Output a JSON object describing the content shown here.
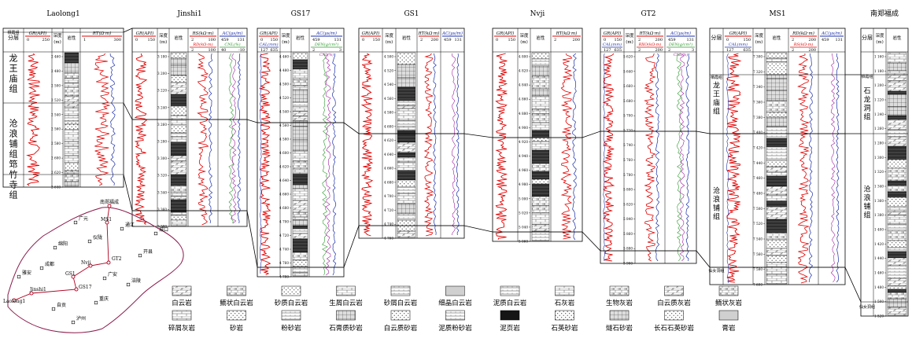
{
  "wells": [
    {
      "name": "Laolong1",
      "x": 4,
      "w": 153,
      "top": 36,
      "bot": 238,
      "cols": [
        {
          "k": "fm",
          "w": 26,
          "label": "分层"
        },
        {
          "k": "gr",
          "w": 36,
          "curve": "GR(API)",
          "range": [
            "0",
            "250"
          ]
        },
        {
          "k": "d",
          "w": 14,
          "label": "深度\n(m)"
        },
        {
          "k": "l",
          "w": 22,
          "label": "岩性"
        },
        {
          "k": "rt",
          "w": 55,
          "curve": "RT(Ω·m)",
          "range": [
            "1",
            "300"
          ]
        }
      ],
      "ticks": [
        "2 460",
        "2 480",
        "2 500",
        "2 520",
        "2 540",
        "2 560",
        "2 580",
        "2 600",
        "2 620",
        "2 640"
      ],
      "formations": [
        {
          "name": "栖霞组",
          "y": 42,
          "short": true
        },
        {
          "name": "龙王庙组",
          "y": 97
        },
        {
          "name": "沧浪铺组",
          "y": 180
        },
        {
          "name": "筇竹寺组",
          "y": 232
        }
      ],
      "boundaries": [
        41,
        131,
        222
      ]
    },
    {
      "name": "Jinshi1",
      "x": 168,
      "w": 146,
      "top": 36,
      "bot": 288,
      "cols": [
        {
          "k": "gr",
          "w": 32,
          "curve": "GR(API)",
          "range": [
            "0",
            "150"
          ]
        },
        {
          "k": "d",
          "w": 15,
          "label": "深度\n(m)"
        },
        {
          "k": "l",
          "w": 24,
          "label": "岩性"
        },
        {
          "k": "rt",
          "w": 38,
          "curve": "RS(kΩ·m)",
          "range": [
            "2",
            "100"
          ],
          "curve2": "RD(kΩ·m)",
          "range2": [
            "2",
            "100"
          ]
        },
        {
          "k": "ac",
          "w": 37,
          "curve": "AC(μs/m)",
          "range": [
            "459",
            "131"
          ],
          "curve2": "CNL(%)",
          "range2": [
            "40",
            "-10"
          ]
        }
      ],
      "ticks": [
        "3 180",
        "3 200",
        "3 220",
        "3 240",
        "3 260",
        "3 280",
        "3 300",
        "3 320",
        "3 340",
        "3 360",
        "3 380"
      ],
      "boundaries": [
        152,
        268
      ]
    },
    {
      "name": "GS17",
      "x": 327,
      "w": 110,
      "top": 36,
      "bot": 352,
      "cols": [
        {
          "k": "gr",
          "w": 29,
          "curve": "GR(API)",
          "range": [
            "0",
            "150"
          ],
          "curve2": "CAL(mm)",
          "range2": [
            "127",
            "635"
          ]
        },
        {
          "k": "d",
          "w": 14,
          "label": "深度\n(m)"
        },
        {
          "k": "l",
          "w": 23,
          "label": "岩性"
        },
        {
          "k": "ac",
          "w": 44,
          "curve": "AC(μs/m)",
          "range": [
            "459",
            "131"
          ],
          "curve2": "DEN(g/cm³)",
          "range2": [
            "2",
            "3"
          ],
          "curve3": "CNL(%)",
          "range3": [
            "40",
            "-10"
          ]
        }
      ],
      "ticks": [
        "4 460",
        "4 480",
        "4 500",
        "4 520",
        "4 540",
        "4 560",
        "4 580",
        "4 600",
        "4 620",
        "4 640",
        "4 660",
        "4 680",
        "4 700",
        "4 720",
        "4 740",
        "4 760",
        "4 780"
      ],
      "boundaries": [
        156,
        340
      ]
    },
    {
      "name": "GS1",
      "x": 456,
      "w": 134,
      "top": 36,
      "bot": 303,
      "cols": [
        {
          "k": "gr",
          "w": 30,
          "curve": "GR(API)",
          "range": [
            "0",
            "150"
          ]
        },
        {
          "k": "d",
          "w": 17,
          "label": "深度\n(m)"
        },
        {
          "k": "l",
          "w": 27,
          "label": "岩性"
        },
        {
          "k": "rt",
          "w": 30,
          "curve": "RT(kΩ·m)",
          "range": [
            "2",
            "200"
          ]
        },
        {
          "k": "ac",
          "w": 30,
          "curve": "AC(μs/m)",
          "range": [
            "459",
            "131"
          ]
        }
      ],
      "ticks": [
        "4 500",
        "4 520",
        "4 540",
        "4 560",
        "4 580",
        "4 600",
        "4 620",
        "4 640",
        "4 660",
        "4 680",
        "4 700",
        "4 720",
        "4 740",
        "4 760"
      ],
      "boundaries": [
        170,
        287
      ]
    },
    {
      "name": "Nvji",
      "x": 626,
      "w": 114,
      "top": 36,
      "bot": 307,
      "cols": [
        {
          "k": "gr",
          "w": 32,
          "curve": "GR(API)",
          "range": [
            "0",
            "150"
          ]
        },
        {
          "k": "d",
          "w": 16,
          "label": "深度\n(m)"
        },
        {
          "k": "l",
          "w": 26,
          "label": "岩性"
        },
        {
          "k": "rt",
          "w": 40,
          "curve": "RT(kΩ·m)",
          "range": [
            "2",
            "200"
          ]
        }
      ],
      "ticks": [
        "4 800",
        "4 820",
        "4 840",
        "4 860",
        "4 880",
        "4 900",
        "4 920",
        "4 940",
        "4 960",
        "4 980",
        "5 000",
        "5 020",
        "5 040",
        "5 060"
      ],
      "boundaries": [
        175,
        295
      ]
    },
    {
      "name": "GT2",
      "x": 763,
      "w": 122,
      "top": 36,
      "bot": 335,
      "cols": [
        {
          "k": "gr",
          "w": 30,
          "curve": "GR(API)",
          "range": [
            "0",
            "150"
          ],
          "curve2": "CAL(mm)",
          "range2": [
            "127",
            "635"
          ]
        },
        {
          "k": "d",
          "w": 14,
          "label": "深度\n(m)"
        },
        {
          "k": "rt",
          "w": 38,
          "curve": "RT(kΩ·m)",
          "range": [
            "2",
            "200"
          ],
          "curve2": "RXO(kΩ·m)",
          "range2": [
            "2",
            "200"
          ]
        },
        {
          "k": "ac",
          "w": 40,
          "curve": "AC(μs/m)",
          "range": [
            "459",
            "131"
          ],
          "curve2": "DEN(g/cm³)",
          "range2": [
            "2",
            "3"
          ],
          "curve3": "CNL(%)",
          "range3": [
            "40",
            "-10"
          ]
        }
      ],
      "ticks": [
        "5 620",
        "5 640",
        "5 660",
        "5 680",
        "5 700",
        "5 720",
        "5 740",
        "5 760",
        "5 780",
        "5 800",
        "5 820",
        "5 840",
        "5 860",
        "5 880",
        "5 900"
      ],
      "boundaries": [
        167,
        319
      ]
    },
    {
      "name": "MS1",
      "x": 902,
      "w": 172,
      "top": 36,
      "bot": 362,
      "cols": [
        {
          "k": "fm",
          "w": 17,
          "label": "分层"
        },
        {
          "k": "gr",
          "w": 38,
          "curve": "GR(API)",
          "range": [
            "0",
            "150"
          ],
          "curve2": "CAL(mm)",
          "range2": [
            "127",
            "635"
          ]
        },
        {
          "k": "d",
          "w": 15,
          "label": "深度\n(m)"
        },
        {
          "k": "l",
          "w": 30,
          "label": "岩性"
        },
        {
          "k": "rt",
          "w": 38,
          "curve": "RD(kΩ·m)",
          "range": [
            "2",
            "200"
          ],
          "curve2": "RS(kΩ·m)",
          "range2": [
            "2",
            "200"
          ]
        },
        {
          "k": "ac",
          "w": 34,
          "curve": "AC(μs/m)",
          "range": [
            "459",
            "131"
          ]
        }
      ],
      "ticks": [
        "7 300",
        "7 320",
        "7 340",
        "7 360",
        "7 380",
        "7 400",
        "7 420",
        "7 440",
        "7 460",
        "7 480",
        "7 500",
        "7 520",
        "7 540",
        "7 560",
        "7 580",
        "7 600"
      ],
      "formations": [
        {
          "name": "栖霞组",
          "y": 99,
          "short": true
        },
        {
          "name": "龙王庙组",
          "y": 128
        },
        {
          "name": "沧浪铺组",
          "y": 262
        },
        {
          "name": "仙女洞组",
          "y": 345,
          "short": true
        }
      ],
      "boundaries": [
        95,
        170,
        340
      ]
    },
    {
      "name": "南郑福成",
      "x": 1094,
      "w": 60,
      "top": 36,
      "bot": 402,
      "cols": [
        {
          "k": "fm",
          "w": 16,
          "label": "分层"
        },
        {
          "k": "d",
          "w": 16,
          "label": "深度\n(m)"
        },
        {
          "k": "l",
          "w": 28,
          "label": "岩性"
        }
      ],
      "ticks": [
        "1 160",
        "1 180",
        "1 200",
        "1 220",
        "1 240",
        "1 260",
        "1 280",
        "1 300",
        "1 320",
        "1 340",
        "1 360",
        "1 380",
        "1 400",
        "1 420",
        "1 440",
        "1 460",
        "1 480",
        "1 500",
        "1 520"
      ],
      "formations": [
        {
          "name": "栖霞组",
          "y": 98,
          "short": true
        },
        {
          "name": "石龙洞组",
          "y": 135
        },
        {
          "name": "沧浪铺组",
          "y": 260
        },
        {
          "name": "仙女洞组",
          "y": 391,
          "short": true
        }
      ],
      "boundaries": [
        95,
        170,
        384
      ]
    }
  ],
  "correlation_lines": [
    [
      [
        157,
        131
      ],
      [
        168,
        152
      ],
      [
        314,
        152
      ],
      [
        327,
        156
      ],
      [
        437,
        156
      ],
      [
        456,
        170
      ],
      [
        590,
        170
      ],
      [
        626,
        175
      ],
      [
        740,
        175
      ],
      [
        763,
        167
      ],
      [
        885,
        167
      ],
      [
        902,
        170
      ],
      [
        1074,
        170
      ],
      [
        1094,
        170
      ]
    ],
    [
      [
        157,
        222
      ],
      [
        168,
        268
      ],
      [
        314,
        268
      ],
      [
        327,
        340
      ],
      [
        437,
        340
      ],
      [
        456,
        287
      ],
      [
        590,
        287
      ],
      [
        626,
        295
      ],
      [
        740,
        295
      ],
      [
        763,
        319
      ],
      [
        885,
        319
      ],
      [
        902,
        340
      ],
      [
        1074,
        340
      ],
      [
        1094,
        384
      ]
    ],
    [
      [
        157,
        41
      ],
      [
        168,
        36
      ]
    ],
    [
      [
        1074,
        95
      ],
      [
        1094,
        95
      ]
    ]
  ],
  "map": {
    "cities": [
      {
        "name": "南郑福成",
        "x": 139,
        "y": 262,
        "kind": "well"
      },
      {
        "name": "广元",
        "x": 96,
        "y": 283,
        "kind": "city"
      },
      {
        "name": "MS1",
        "x": 136,
        "y": 283,
        "kind": "well"
      },
      {
        "name": "通江",
        "x": 155,
        "y": 291,
        "kind": "city"
      },
      {
        "name": "城口",
        "x": 198,
        "y": 297,
        "kind": "city"
      },
      {
        "name": "仪陇",
        "x": 114,
        "y": 307,
        "kind": "city"
      },
      {
        "name": "绵阳",
        "x": 70,
        "y": 315,
        "kind": "city"
      },
      {
        "name": "开县",
        "x": 178,
        "y": 325,
        "kind": "city"
      },
      {
        "name": "Nvji",
        "x": 115,
        "y": 338,
        "kind": "well"
      },
      {
        "name": "GT2",
        "x": 138,
        "y": 334,
        "kind": "well"
      },
      {
        "name": "成都",
        "x": 53,
        "y": 341,
        "kind": "city"
      },
      {
        "name": "GS1",
        "x": 93,
        "y": 352,
        "kind": "well"
      },
      {
        "name": "广安",
        "x": 133,
        "y": 354,
        "kind": "city"
      },
      {
        "name": "GS17",
        "x": 97,
        "y": 368,
        "kind": "well"
      },
      {
        "name": "涪陵",
        "x": 163,
        "y": 362,
        "kind": "city"
      },
      {
        "name": "雅安",
        "x": 24,
        "y": 352,
        "kind": "city"
      },
      {
        "name": "Jinshi1",
        "x": 40,
        "y": 373,
        "kind": "well"
      },
      {
        "name": "自贡",
        "x": 68,
        "y": 393,
        "kind": "city"
      },
      {
        "name": "重庆",
        "x": 122,
        "y": 385,
        "kind": "city"
      },
      {
        "name": "Laolong1",
        "x": 18,
        "y": 382,
        "kind": "well"
      },
      {
        "name": "泸州",
        "x": 93,
        "y": 410,
        "kind": "city"
      }
    ]
  },
  "legend": {
    "row1": [
      "白云岩",
      "鲕状白云岩",
      "砂质白云岩",
      "生屑白云岩",
      "砂屑白云岩",
      "细晶白云岩",
      "泥质白云岩",
      "石灰岩",
      "生物灰岩",
      "白云质灰岩",
      "鲕状灰岩"
    ],
    "row2": [
      "碎屑灰岩",
      "砂岩",
      "粉砂岩",
      "石膏质砂岩",
      "白云质砂岩",
      "泥质粉砂岩",
      "泥页岩",
      "石英砂岩",
      "燧石砂岩",
      "长石石英砂岩",
      "膏岩"
    ]
  }
}
